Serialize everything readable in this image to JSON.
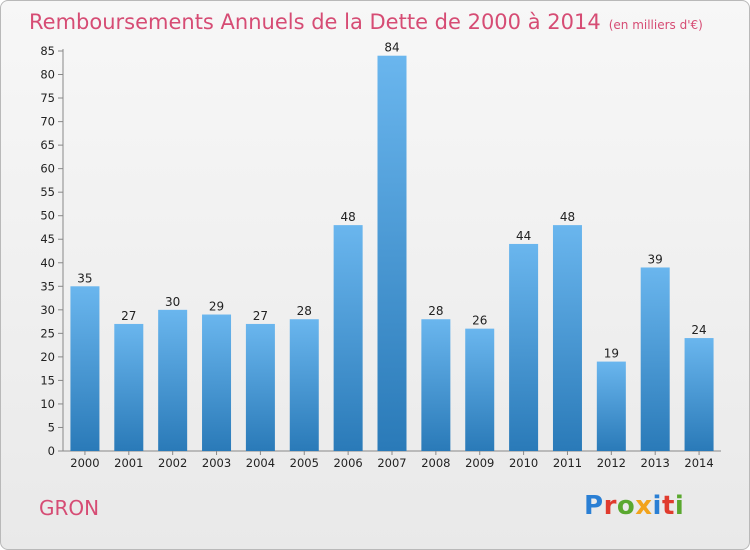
{
  "title": "Remboursements Annuels de la Dette de 2000 à 2014",
  "unit": "(en milliers d'€)",
  "commune": "GRON",
  "logo": {
    "letters": [
      {
        "char": "P",
        "color": "#2a7fd4"
      },
      {
        "char": "r",
        "color": "#e03b2e"
      },
      {
        "char": "o",
        "color": "#5aa82f"
      },
      {
        "char": "x",
        "color": "#f2a31b"
      },
      {
        "char": "i",
        "color": "#2a7fd4"
      },
      {
        "char": "t",
        "color": "#e03b2e"
      },
      {
        "char": "i",
        "color": "#5aa82f"
      }
    ]
  },
  "colors": {
    "bar_top": "#6ab6ee",
    "bar_bottom": "#2a7ab8",
    "accent": "#d64c74"
  },
  "chart_data": {
    "type": "bar",
    "categories": [
      "2000",
      "2001",
      "2002",
      "2003",
      "2004",
      "2005",
      "2006",
      "2007",
      "2008",
      "2009",
      "2010",
      "2011",
      "2012",
      "2013",
      "2014"
    ],
    "values": [
      35,
      27,
      30,
      29,
      27,
      28,
      48,
      84,
      28,
      26,
      44,
      48,
      19,
      39,
      24
    ],
    "title": "Remboursements Annuels de la Dette de 2000 à 2014",
    "subtitle": "(en milliers d'€)",
    "xlabel": "",
    "ylabel": "",
    "ylim": [
      0,
      85
    ],
    "yticks": [
      0,
      5,
      10,
      15,
      20,
      25,
      30,
      35,
      40,
      45,
      50,
      55,
      60,
      65,
      70,
      75,
      80,
      85
    ],
    "grid": false,
    "legend": "none"
  }
}
